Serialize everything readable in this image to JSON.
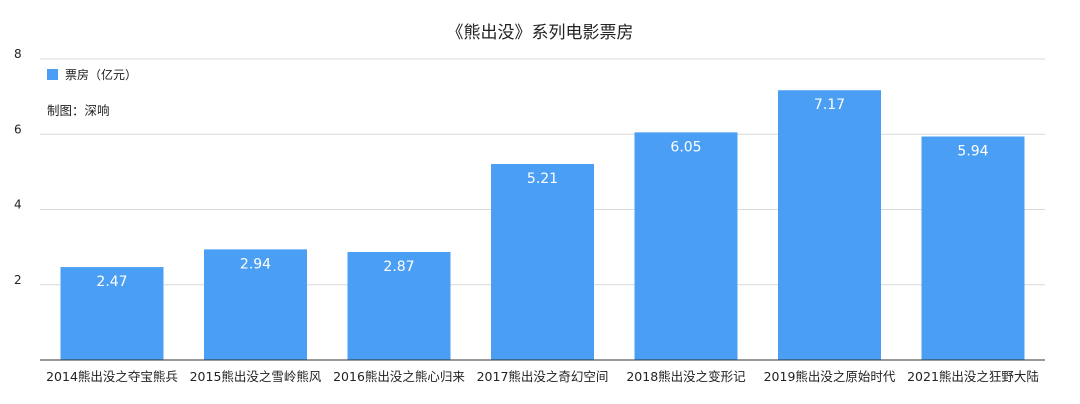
{
  "chart_data": {
    "type": "bar",
    "title": "《熊出没》系列电影票房",
    "categories": [
      "2014熊出没之夺宝熊兵",
      "2015熊出没之雪岭熊风",
      "2016熊出没之熊心归来",
      "2017熊出没之奇幻空间",
      "2018熊出没之变形记",
      "2019熊出没之原始时代",
      "2021熊出没之狂野大陆"
    ],
    "series": [
      {
        "name": "票房（亿元）",
        "values": [
          2.47,
          2.94,
          2.87,
          5.21,
          6.05,
          7.17,
          5.94
        ],
        "color": "#4a9ff5"
      }
    ],
    "ylim": [
      0,
      8
    ],
    "yticks": [
      2,
      4,
      6,
      8
    ],
    "grid": true,
    "legend_position": "top-left",
    "note": "制图：深响"
  }
}
